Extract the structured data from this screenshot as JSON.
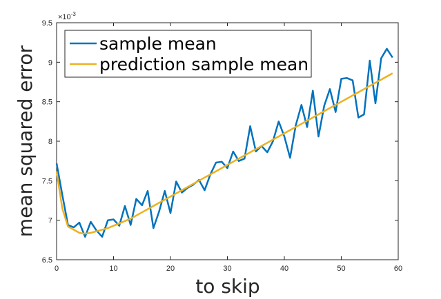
{
  "chart_data": {
    "type": "line",
    "title": "",
    "xlabel": "to skip",
    "ylabel": "mean squared error",
    "exponent_label": "×10-3",
    "xlim": [
      0,
      60
    ],
    "ylim": [
      6.5,
      9.5
    ],
    "xticks": [
      "0",
      "10",
      "20",
      "30",
      "40",
      "50",
      "60"
    ],
    "yticks": [
      "6.5",
      "7",
      "7.5",
      "8",
      "8.5",
      "9",
      "9.5"
    ],
    "grid": false,
    "legend_position": "top-left",
    "x": [
      0,
      1,
      2,
      3,
      4,
      5,
      6,
      7,
      8,
      9,
      10,
      11,
      12,
      13,
      14,
      15,
      16,
      17,
      18,
      19,
      20,
      21,
      22,
      23,
      24,
      25,
      26,
      27,
      28,
      29,
      30,
      31,
      32,
      33,
      34,
      35,
      36,
      37,
      38,
      39,
      40,
      41,
      42,
      43,
      44,
      45,
      46,
      47,
      48,
      49,
      50,
      51,
      52,
      53,
      54,
      55,
      56,
      57,
      58,
      59
    ],
    "series": [
      {
        "name": "sample mean",
        "color": "#0072BD",
        "values": [
          7.72,
          7.32,
          6.94,
          6.91,
          6.97,
          6.79,
          6.98,
          6.87,
          6.79,
          7.0,
          7.01,
          6.93,
          7.18,
          6.94,
          7.27,
          7.19,
          7.37,
          6.9,
          7.11,
          7.37,
          7.09,
          7.49,
          7.35,
          7.41,
          7.45,
          7.51,
          7.38,
          7.58,
          7.73,
          7.74,
          7.66,
          7.87,
          7.75,
          7.78,
          8.19,
          7.87,
          7.94,
          7.86,
          8.0,
          8.25,
          8.06,
          7.79,
          8.2,
          8.46,
          8.18,
          8.64,
          8.06,
          8.45,
          8.66,
          8.37,
          8.79,
          8.8,
          8.77,
          8.3,
          8.34,
          9.02,
          8.48,
          9.05,
          9.17,
          9.06
        ]
      },
      {
        "name": "prediction sample mean",
        "color": "#EDB120",
        "values": [
          7.62,
          7.15,
          6.92,
          6.88,
          6.84,
          6.83,
          6.84,
          6.86,
          6.88,
          6.9,
          6.93,
          6.96,
          6.99,
          7.02,
          7.06,
          7.1,
          7.14,
          7.18,
          7.22,
          7.26,
          7.3,
          7.34,
          7.38,
          7.42,
          7.46,
          7.5,
          7.54,
          7.58,
          7.62,
          7.66,
          7.7,
          7.74,
          7.78,
          7.82,
          7.86,
          7.9,
          7.94,
          7.98,
          8.02,
          8.06,
          8.1,
          8.14,
          8.18,
          8.22,
          8.26,
          8.3,
          8.34,
          8.38,
          8.42,
          8.46,
          8.5,
          8.54,
          8.58,
          8.62,
          8.66,
          8.7,
          8.74,
          8.78,
          8.82,
          8.86
        ]
      }
    ]
  }
}
